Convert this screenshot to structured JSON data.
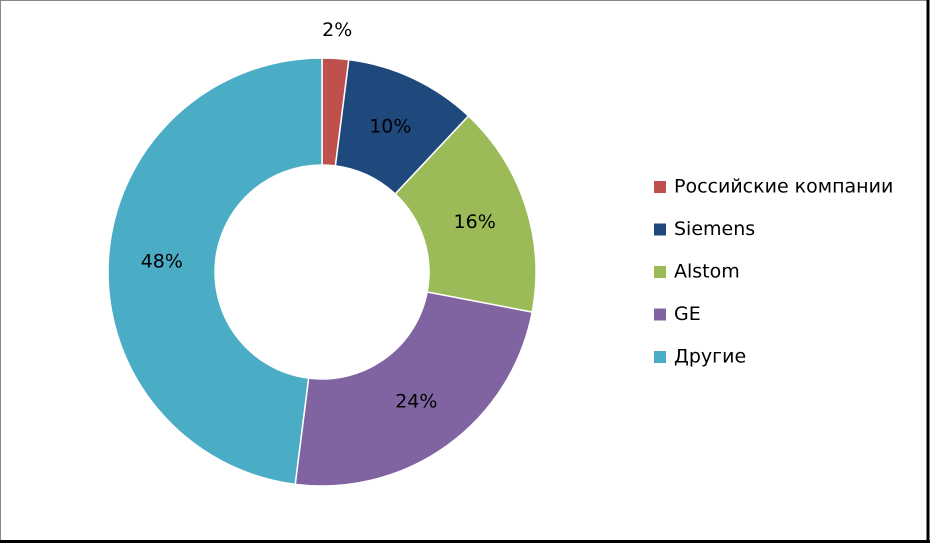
{
  "chart_data": {
    "type": "pie",
    "categories": [
      "Российские компании",
      "Siemens",
      "Alstom",
      "GE",
      "Другие"
    ],
    "values": [
      2,
      10,
      16,
      24,
      48
    ],
    "value_labels": [
      "2%",
      "10%",
      "16%",
      "24%",
      "48%"
    ],
    "colors": [
      "#c0504d",
      "#1f497d",
      "#9bbb59",
      "#8064a2",
      "#4bacc6"
    ],
    "legend": "right"
  }
}
